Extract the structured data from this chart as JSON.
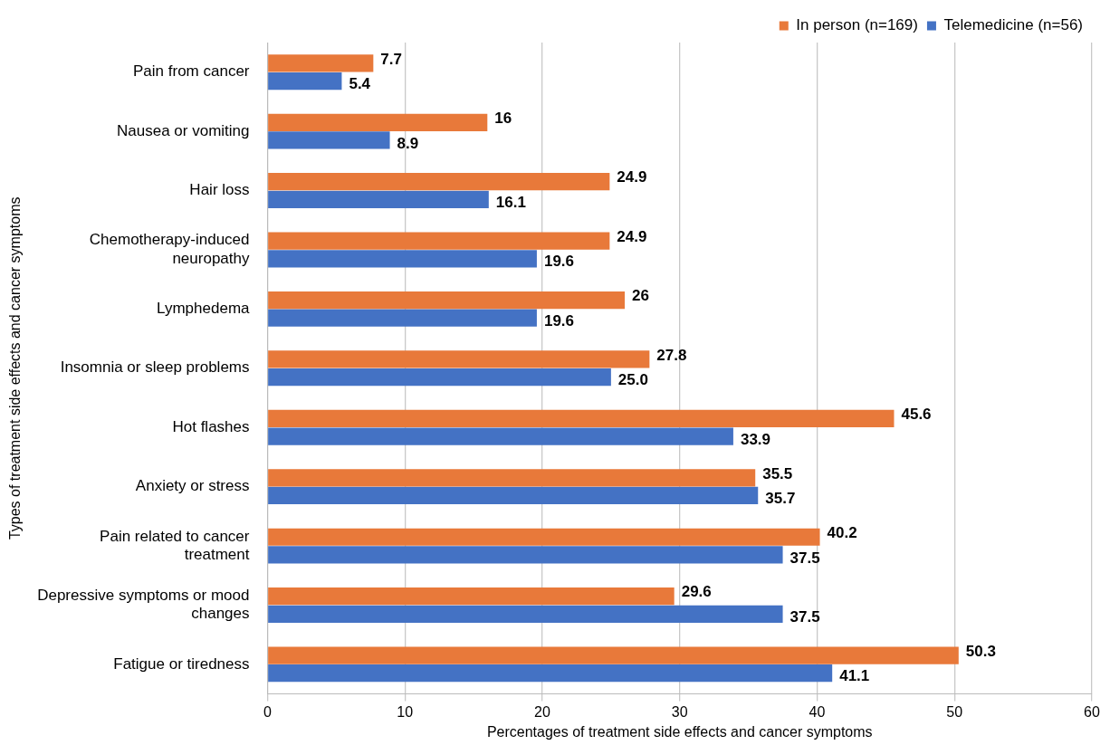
{
  "chart_data": {
    "type": "bar",
    "orientation": "horizontal",
    "xlabel": "Percentages of treatment side effects and cancer symptoms",
    "ylabel": "Types of treatment side effects and cancer symptoms",
    "categories": [
      "Pain from cancer",
      "Nausea or vomiting",
      "Hair loss",
      "Chemotherapy-induced neuropathy",
      "Lymphedema",
      "Insomnia or sleep problems",
      "Hot flashes",
      "Anxiety or stress",
      "Pain related to cancer treatment",
      "Depressive symptoms or mood changes",
      "Fatigue or tiredness"
    ],
    "series": [
      {
        "name": "In person (n=169)",
        "color": "#e8793a",
        "values": [
          7.7,
          16,
          24.9,
          24.9,
          26,
          27.8,
          45.6,
          35.5,
          40.2,
          29.6,
          50.3
        ],
        "value_labels": [
          "7.7",
          "16",
          "24.9",
          "24.9",
          "26",
          "27.8",
          "45.6",
          "35.5",
          "40.2",
          "29.6",
          "50.3"
        ]
      },
      {
        "name": "Telemedicine (n=56)",
        "color": "#4472c4",
        "values": [
          5.4,
          8.9,
          16.1,
          19.6,
          19.6,
          25.0,
          33.9,
          35.7,
          37.5,
          37.5,
          41.1
        ],
        "value_labels": [
          "5.4",
          "8.9",
          "16.1",
          "19.6",
          "19.6",
          "25.0",
          "33.9",
          "35.7",
          "37.5",
          "37.5",
          "41.1"
        ]
      }
    ],
    "xlim": [
      0,
      60
    ],
    "xticks": [
      0,
      10,
      20,
      30,
      40,
      50,
      60
    ],
    "grid": "x",
    "legend": "top right"
  }
}
